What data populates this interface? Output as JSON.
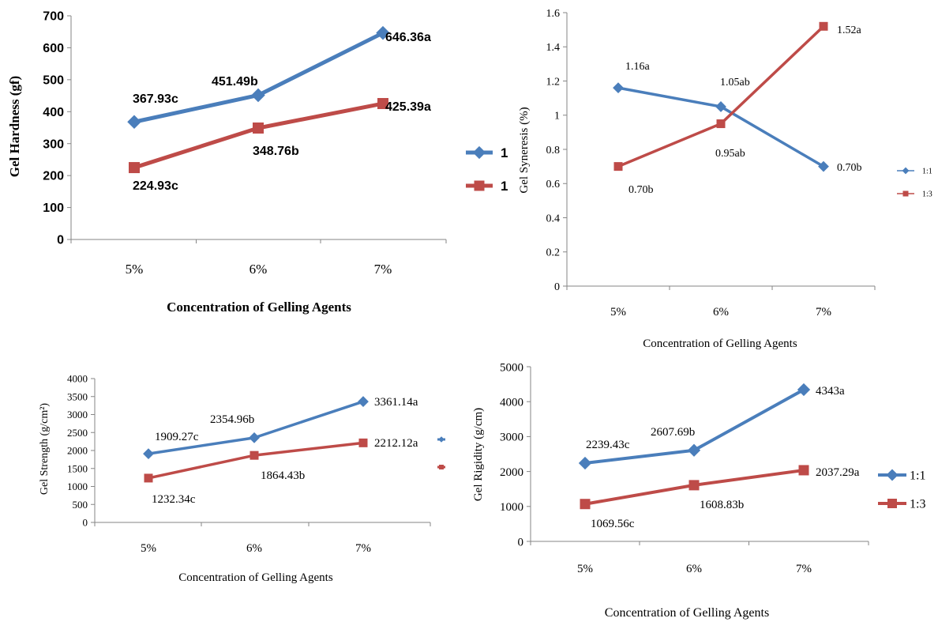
{
  "charts": [
    {
      "key": "hardness",
      "chart_data": {
        "type": "line",
        "categories": [
          "5%",
          "6%",
          "7%"
        ],
        "ylabel": "Gel Hardness (gf)",
        "xlabel": "Concentration of Gelling Agents",
        "ylim": [
          0,
          700
        ],
        "yticks": [
          0,
          100,
          200,
          300,
          400,
          500,
          600,
          700
        ],
        "grid": false,
        "legend_placement": "right",
        "series": [
          {
            "name": "1",
            "color": "#4a7ebb",
            "marker": "diamond",
            "values": [
              367.93,
              451.49,
              646.36
            ],
            "labels": [
              "367.93c",
              "451.49b",
              "646.36a"
            ]
          },
          {
            "name": "1",
            "color": "#be4b48",
            "marker": "square",
            "values": [
              224.93,
              348.76,
              425.39
            ],
            "labels": [
              "224.93c",
              "348.76b",
              "425.39a"
            ]
          }
        ]
      }
    },
    {
      "key": "syneresis",
      "chart_data": {
        "type": "line",
        "categories": [
          "5%",
          "6%",
          "7%"
        ],
        "ylabel": "Gel Syneresis (%)",
        "xlabel": "Concentration of Gelling Agents",
        "ylim": [
          0,
          1.6
        ],
        "yticks": [
          0,
          0.2,
          0.4,
          0.6,
          0.8,
          1,
          1.2,
          1.4,
          1.6
        ],
        "grid": false,
        "legend_placement": "right",
        "series": [
          {
            "name": "1:1",
            "color": "#4a7ebb",
            "marker": "diamond",
            "values": [
              1.16,
              1.05,
              0.7
            ],
            "labels": [
              "1.16a",
              "1.05ab",
              "0.70b"
            ]
          },
          {
            "name": "1:3",
            "color": "#be4b48",
            "marker": "square",
            "values": [
              0.7,
              0.95,
              1.52
            ],
            "labels": [
              "0.70b",
              "0.95ab",
              "1.52a"
            ]
          }
        ]
      }
    },
    {
      "key": "strength",
      "chart_data": {
        "type": "line",
        "categories": [
          "5%",
          "6%",
          "7%"
        ],
        "ylabel": "Gel Strength (g/cm²)",
        "xlabel": "Concentration of Gelling Agents",
        "ylim": [
          0,
          4000
        ],
        "yticks": [
          0,
          500,
          1000,
          1500,
          2000,
          2500,
          3000,
          3500,
          4000
        ],
        "grid": false,
        "legend_placement": "right",
        "series": [
          {
            "name": "",
            "color": "#4a7ebb",
            "marker": "diamond",
            "values": [
              1909.27,
              2354.96,
              3361.14
            ],
            "labels": [
              "1909.27c",
              "2354.96b",
              "3361.14a"
            ]
          },
          {
            "name": "",
            "color": "#be4b48",
            "marker": "square",
            "values": [
              1232.34,
              1864.43,
              2212.12
            ],
            "labels": [
              "1232.34c",
              "1864.43b",
              "2212.12a"
            ]
          }
        ]
      }
    },
    {
      "key": "rigidity",
      "chart_data": {
        "type": "line",
        "categories": [
          "5%",
          "6%",
          "7%"
        ],
        "ylabel": "Gel Rigidity (g/cm)",
        "xlabel": "Concentration of Gelling Agents",
        "ylim": [
          0,
          5000
        ],
        "yticks": [
          0,
          1000,
          2000,
          3000,
          4000,
          5000
        ],
        "grid": false,
        "legend_placement": "right",
        "series": [
          {
            "name": "1:1",
            "color": "#4a7ebb",
            "marker": "diamond",
            "values": [
              2239.43,
              2607.69,
              4343
            ],
            "labels": [
              "2239.43c",
              "2607.69b",
              "4343a"
            ]
          },
          {
            "name": "1:3",
            "color": "#be4b48",
            "marker": "square",
            "values": [
              1069.56,
              1608.83,
              2037.29
            ],
            "labels": [
              "1069.56c",
              "1608.83b",
              "2037.29a"
            ]
          }
        ]
      }
    }
  ]
}
